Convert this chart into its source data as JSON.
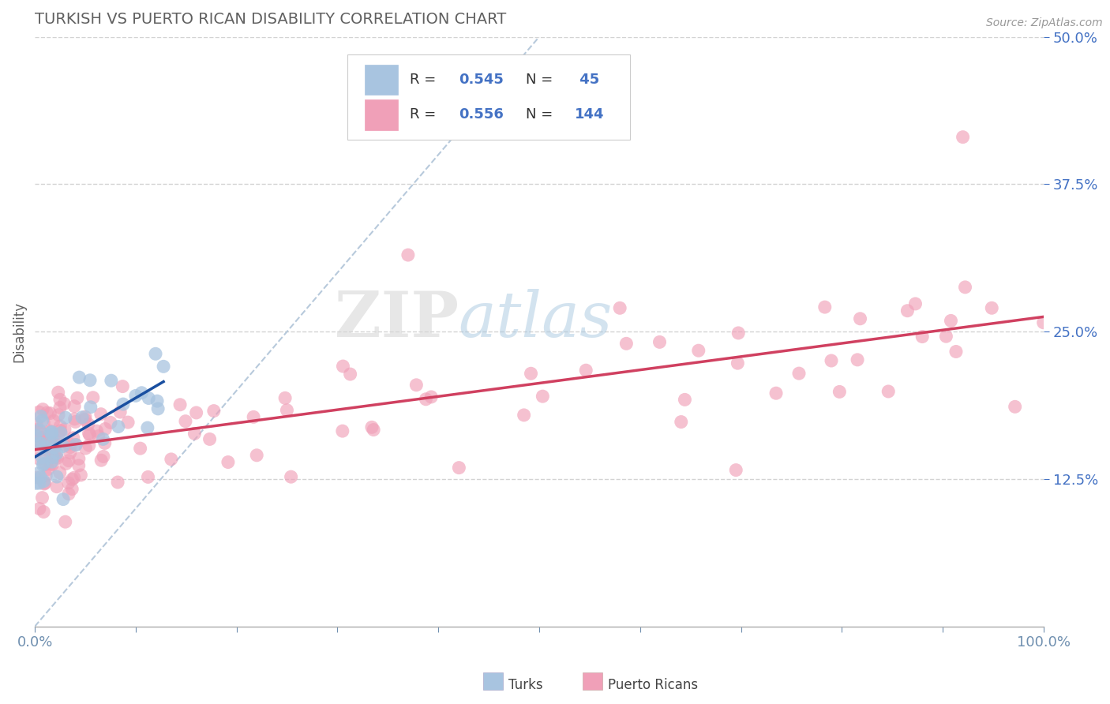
{
  "title": "TURKISH VS PUERTO RICAN DISABILITY CORRELATION CHART",
  "source": "Source: ZipAtlas.com",
  "ylabel": "Disability",
  "watermark_zip": "ZIP",
  "watermark_atlas": "atlas",
  "legend_r_turks": "0.545",
  "legend_n_turks": " 45",
  "legend_r_puerto": "0.556",
  "legend_n_puerto": "144",
  "turks_color": "#a8c4e0",
  "turks_line_color": "#1a4fa0",
  "puerto_color": "#f0a0b8",
  "puerto_line_color": "#d04060",
  "background_color": "#ffffff",
  "grid_color": "#c8c8c8",
  "title_color": "#606060",
  "axis_label_color": "#606060",
  "right_tick_color": "#4472c4",
  "ref_line_color": "#b0c4d8",
  "xlim": [
    0,
    1
  ],
  "ylim": [
    0,
    0.5
  ],
  "yticks_right": [
    0.125,
    0.25,
    0.375,
    0.5
  ],
  "ytick_labels_right": [
    "12.5%",
    "25.0%",
    "37.5%",
    "50.0%"
  ]
}
